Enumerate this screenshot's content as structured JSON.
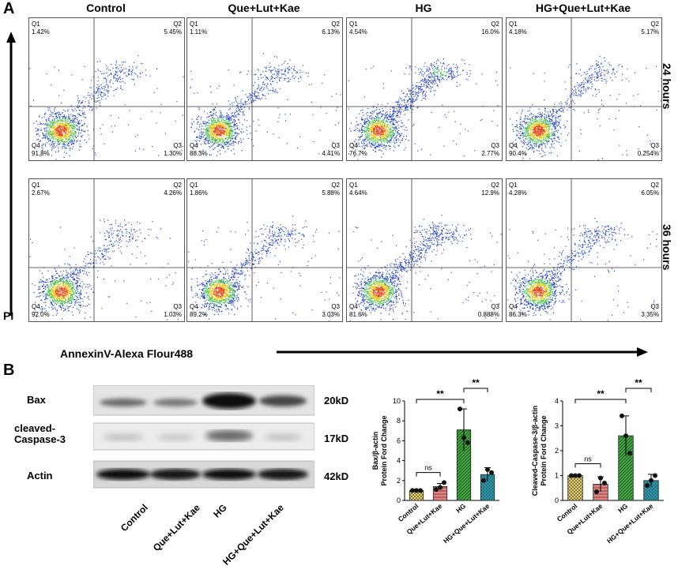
{
  "panels": {
    "a": "A",
    "b": "B"
  },
  "flow": {
    "columns": [
      "Control",
      "Que+Lut+Kae",
      "HG",
      "HG+Que+Lut+Kae"
    ],
    "rows": [
      "24 hours",
      "36 hours"
    ],
    "y_axis": "PI",
    "x_axis": "AnnexinV-Alexa Flour488",
    "quadrant_names": [
      "Q1",
      "Q2",
      "Q3",
      "Q4"
    ],
    "plots": [
      {
        "q1": "1.42%",
        "q2": "5.45%",
        "q3": "1.30%",
        "q4": "91.8%"
      },
      {
        "q1": "1.11%",
        "q2": "6.13%",
        "q3": "4.41%",
        "q4": "88.3%"
      },
      {
        "q1": "4.54%",
        "q2": "16.0%",
        "q3": "2.77%",
        "q4": "76.7%"
      },
      {
        "q1": "4.18%",
        "q2": "5.17%",
        "q3": "0.254%",
        "q4": "90.4%"
      },
      {
        "q1": "2.67%",
        "q2": "4.26%",
        "q3": "1.03%",
        "q4": "92.0%"
      },
      {
        "q1": "1.86%",
        "q2": "5.88%",
        "q3": "3.03%",
        "q4": "89.2%"
      },
      {
        "q1": "4.64%",
        "q2": "12.9%",
        "q3": "0.888%",
        "q4": "81.6%"
      },
      {
        "q1": "4.28%",
        "q2": "6.05%",
        "q3": "3.35%",
        "q4": "86.3%"
      }
    ]
  },
  "western": {
    "bands": [
      {
        "name": "Bax",
        "kd": "20kD"
      },
      {
        "name": "cleaved-\nCaspase-3",
        "kd": "17kD"
      },
      {
        "name": "Actin",
        "kd": "42kD"
      }
    ],
    "lanes": [
      "Control",
      "Que+Lut+Kae",
      "HG",
      "HG+Que+Lut+Kae"
    ]
  },
  "chart_data": [
    {
      "type": "bar",
      "categories": [
        "Control",
        "Que+Lut+Kae",
        "HG",
        "HG+Que+Lut+Kae"
      ],
      "values": [
        1.0,
        1.4,
        7.1,
        2.6
      ],
      "errors": [
        0.1,
        0.3,
        2.1,
        0.7
      ],
      "points": [
        [
          1.0,
          1.0,
          1.0
        ],
        [
          1.1,
          1.3,
          1.8
        ],
        [
          9.2,
          6.3,
          5.8
        ],
        [
          2.0,
          3.1,
          2.8
        ]
      ],
      "ylabel": "Bax/β-actin\nProtein Ford Change",
      "ylim": [
        0,
        10
      ],
      "yticks": [
        0,
        2,
        4,
        6,
        8,
        10
      ],
      "colors": [
        "#e8d26b",
        "#e88080",
        "#3aa63a",
        "#2a8fa0"
      ],
      "significance": [
        {
          "label": "ns",
          "from": 0,
          "to": 1
        },
        {
          "label": "**",
          "from": 0,
          "to": 2
        },
        {
          "label": "**",
          "from": 2,
          "to": 3
        }
      ]
    },
    {
      "type": "bar",
      "categories": [
        "Control",
        "Que+Lut+Kae",
        "HG",
        "HG+Que+Lut+Kae"
      ],
      "values": [
        1.0,
        0.65,
        2.6,
        0.8
      ],
      "errors": [
        0.03,
        0.3,
        0.8,
        0.25
      ],
      "points": [
        [
          1.0,
          1.0,
          1.0
        ],
        [
          0.35,
          0.9,
          0.7
        ],
        [
          3.4,
          2.6,
          1.9
        ],
        [
          0.6,
          0.8,
          1.0
        ]
      ],
      "ylabel": "Cleaved-Caspase-3/β-actin\nProtein Ford Change",
      "ylim": [
        0,
        4
      ],
      "yticks": [
        0,
        1,
        2,
        3,
        4
      ],
      "colors": [
        "#e8d26b",
        "#e88080",
        "#3aa63a",
        "#2a8fa0"
      ],
      "significance": [
        {
          "label": "ns",
          "from": 0,
          "to": 1
        },
        {
          "label": "**",
          "from": 0,
          "to": 2
        },
        {
          "label": "**",
          "from": 2,
          "to": 3
        }
      ]
    }
  ]
}
